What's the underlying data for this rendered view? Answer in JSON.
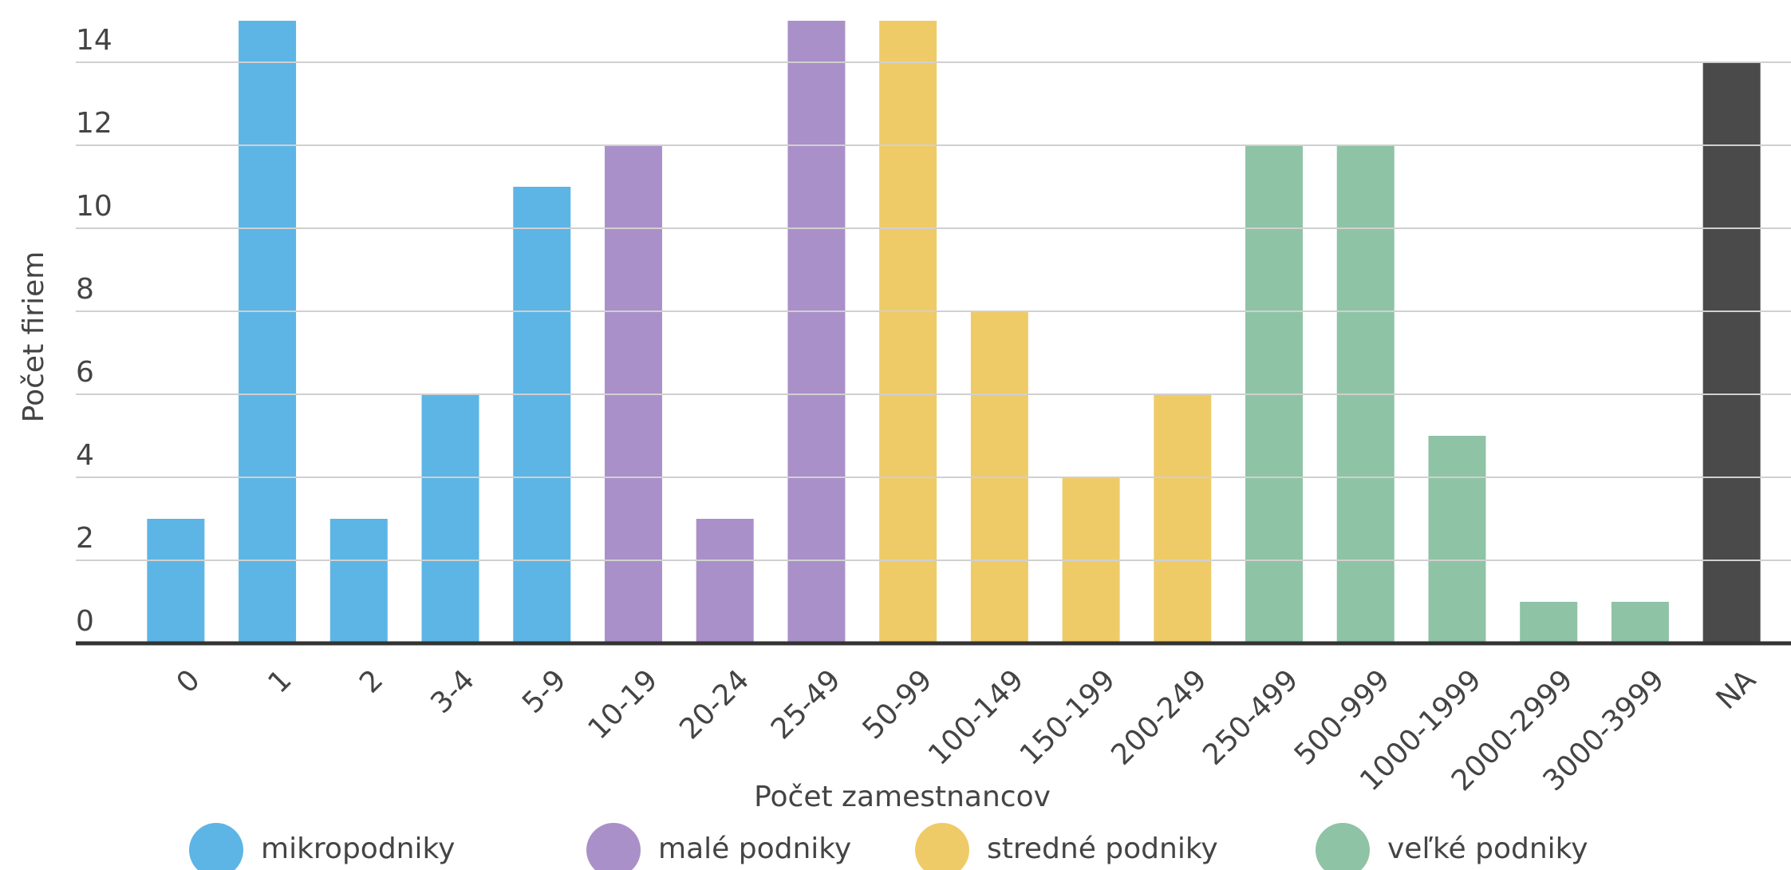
{
  "chart_data": {
    "type": "bar",
    "x_label": "Počet zamestnancov",
    "y_label": "Počet firiem",
    "categories": [
      "0",
      "1",
      "2",
      "3-4",
      "5-9",
      "10-19",
      "20-24",
      "25-49",
      "50-99",
      "100-149",
      "150-199",
      "200-249",
      "250-499",
      "500-999",
      "1000-1999",
      "2000-2999",
      "3000-3999",
      "NA"
    ],
    "values": [
      3,
      15,
      3,
      6,
      11,
      12,
      3,
      15,
      15,
      8,
      4,
      6,
      12,
      12,
      5,
      1,
      1,
      14
    ],
    "colors": [
      "#5db5e5",
      "#5db5e5",
      "#5db5e5",
      "#5db5e5",
      "#5db5e5",
      "#aa90c8",
      "#aa90c8",
      "#aa90c8",
      "#efcb68",
      "#efcb68",
      "#efcb68",
      "#efcb68",
      "#8fc3a5",
      "#8fc3a5",
      "#8fc3a5",
      "#8fc3a5",
      "#8fc3a5",
      "#4a4a4a"
    ],
    "ylim": [
      0,
      15
    ],
    "yticks": [
      0,
      2,
      4,
      6,
      8,
      10,
      12,
      14
    ],
    "grid": true,
    "legend": [
      {
        "name": "mikropodniky",
        "color": "#5db5e5"
      },
      {
        "name": "malé podniky",
        "color": "#aa90c8"
      },
      {
        "name": "stredné podniky",
        "color": "#efcb68"
      },
      {
        "name": "veľké podniky",
        "color": "#8fc3a5"
      }
    ]
  }
}
